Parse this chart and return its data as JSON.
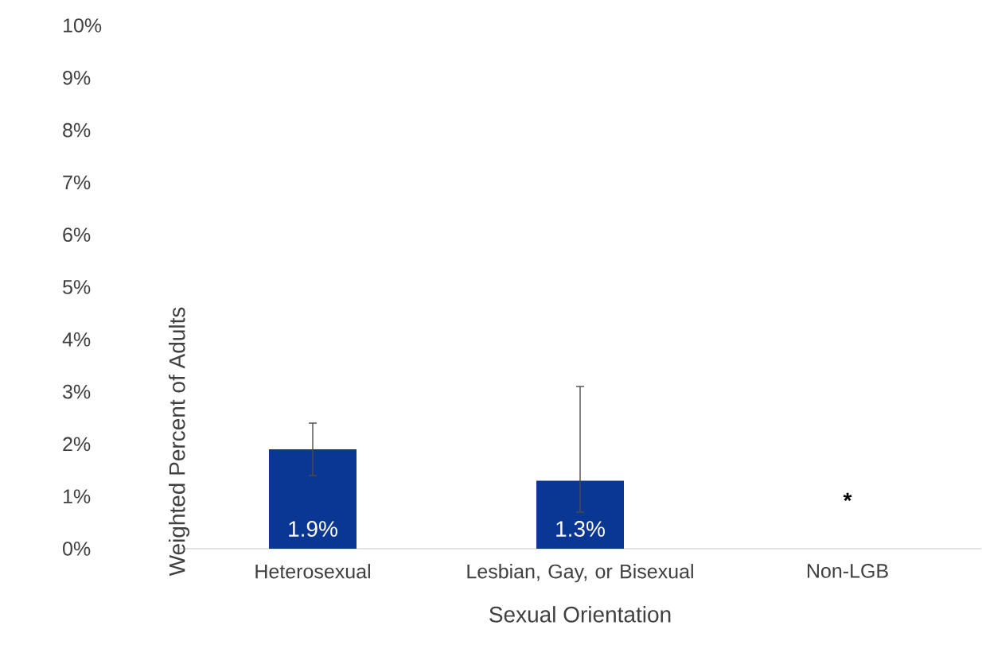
{
  "chart_data": {
    "type": "bar",
    "xlabel": "Sexual Orientation",
    "ylabel": "Weighted Percent of Adults",
    "categories": [
      "Heterosexual",
      "Lesbian, Gay, or Bisexual",
      "Non-LGB"
    ],
    "values": [
      1.9,
      1.3,
      null
    ],
    "value_labels": [
      "1.9%",
      "1.3%",
      null
    ],
    "errors": [
      [
        1.4,
        2.4
      ],
      [
        0.7,
        3.1
      ],
      null
    ],
    "color": "#0a3793",
    "ylim": [
      0,
      10
    ],
    "yticks": [
      {
        "value": 0,
        "label": "0%"
      },
      {
        "value": 1,
        "label": "1%"
      },
      {
        "value": 2,
        "label": "2%"
      },
      {
        "value": 3,
        "label": "3%"
      },
      {
        "value": 4,
        "label": "4%"
      },
      {
        "value": 5,
        "label": "5%"
      },
      {
        "value": 6,
        "label": "6%"
      },
      {
        "value": 7,
        "label": "7%"
      },
      {
        "value": 8,
        "label": "8%"
      },
      {
        "value": 9,
        "label": "9%"
      },
      {
        "value": 10,
        "label": "10%"
      }
    ],
    "annotations": [
      "*"
    ],
    "grid": false
  }
}
